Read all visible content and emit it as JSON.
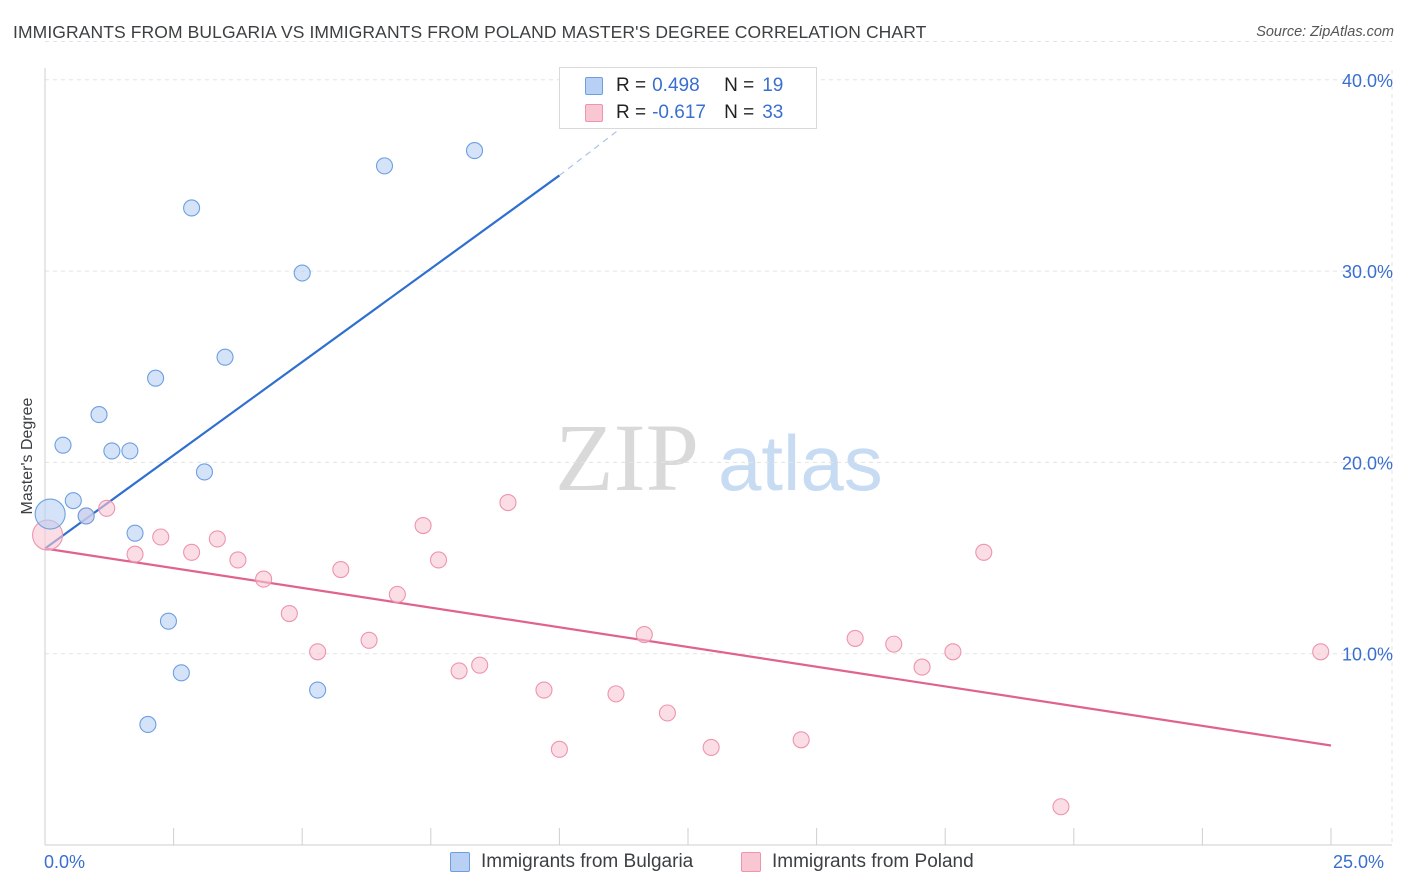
{
  "header": {
    "title": "IMMIGRANTS FROM BULGARIA VS IMMIGRANTS FROM POLAND MASTER'S DEGREE CORRELATION CHART",
    "source": "Source: ZipAtlas.com"
  },
  "watermark": {
    "zip": "ZIP",
    "atlas": "atlas"
  },
  "colors": {
    "bulgaria_fill": "#b7d0f3",
    "bulgaria_stroke": "#6d9fe0",
    "bulgaria_line": "#2f6fd0",
    "poland_fill": "#f9c6d4",
    "poland_stroke": "#ee94ad",
    "poland_line": "#e0638f",
    "axis_text": "#3a6fd0",
    "grid": "#e3e3e3"
  },
  "legend_top": {
    "rows": [
      {
        "r_label": "R =",
        "r_value": "0.498",
        "n_label": "N =",
        "n_value": "19"
      },
      {
        "r_label": "R =",
        "r_value": "-0.617",
        "n_label": "N =",
        "n_value": "33"
      }
    ]
  },
  "legend_bottom": {
    "items": [
      "Immigrants from Bulgaria",
      "Immigrants from Poland"
    ]
  },
  "chart_data": {
    "type": "scatter",
    "title": "IMMIGRANTS FROM BULGARIA VS IMMIGRANTS FROM POLAND MASTER'S DEGREE CORRELATION CHART",
    "xlabel": "",
    "ylabel": "Master's Degree",
    "xlim": [
      0,
      25
    ],
    "ylim": [
      0,
      42
    ],
    "x_tick_labels": [
      "0.0%",
      "25.0%"
    ],
    "y_ticks": [
      10,
      20,
      30,
      40
    ],
    "y_tick_labels": [
      "10.0%",
      "20.0%",
      "30.0%",
      "40.0%"
    ],
    "grid": true,
    "series": [
      {
        "name": "Immigrants from Bulgaria",
        "points": [
          [
            0.1,
            17.3
          ],
          [
            0.35,
            20.9
          ],
          [
            0.55,
            18.0
          ],
          [
            0.8,
            17.2
          ],
          [
            1.05,
            22.5
          ],
          [
            1.3,
            20.6
          ],
          [
            1.65,
            20.6
          ],
          [
            1.75,
            16.3
          ],
          [
            2.15,
            24.4
          ],
          [
            2.4,
            11.7
          ],
          [
            2.65,
            9.0
          ],
          [
            2.0,
            6.3
          ],
          [
            2.85,
            33.3
          ],
          [
            3.1,
            19.5
          ],
          [
            3.5,
            25.5
          ],
          [
            5.0,
            29.9
          ],
          [
            5.3,
            8.1
          ],
          [
            6.6,
            35.5
          ],
          [
            8.35,
            36.3
          ]
        ],
        "trend": {
          "x1": 0.0,
          "y1": 15.5,
          "x2": 10.0,
          "y2": 35.0,
          "dash_to_x": 11.5,
          "dash_to_y": 38.1
        }
      },
      {
        "name": "Immigrants from Poland",
        "points": [
          [
            0.05,
            16.2
          ],
          [
            1.2,
            17.6
          ],
          [
            0.8,
            17.2
          ],
          [
            1.75,
            15.2
          ],
          [
            2.25,
            16.1
          ],
          [
            2.85,
            15.3
          ],
          [
            3.35,
            16.0
          ],
          [
            3.75,
            14.9
          ],
          [
            4.25,
            13.9
          ],
          [
            4.75,
            12.1
          ],
          [
            5.3,
            10.1
          ],
          [
            5.75,
            14.4
          ],
          [
            6.3,
            10.7
          ],
          [
            6.85,
            13.1
          ],
          [
            7.35,
            16.7
          ],
          [
            7.65,
            14.9
          ],
          [
            8.05,
            9.1
          ],
          [
            8.45,
            9.4
          ],
          [
            9.0,
            17.9
          ],
          [
            9.7,
            8.1
          ],
          [
            10.0,
            5.0
          ],
          [
            11.1,
            7.9
          ],
          [
            11.65,
            11.0
          ],
          [
            12.1,
            6.9
          ],
          [
            12.95,
            5.1
          ],
          [
            14.7,
            5.5
          ],
          [
            15.75,
            10.8
          ],
          [
            16.5,
            10.5
          ],
          [
            17.05,
            9.3
          ],
          [
            17.65,
            10.1
          ],
          [
            18.25,
            15.3
          ],
          [
            19.75,
            2.0
          ],
          [
            24.8,
            10.1
          ]
        ],
        "trend": {
          "x1": 0.0,
          "y1": 15.5,
          "x2": 25.0,
          "y2": 5.2
        }
      }
    ]
  }
}
